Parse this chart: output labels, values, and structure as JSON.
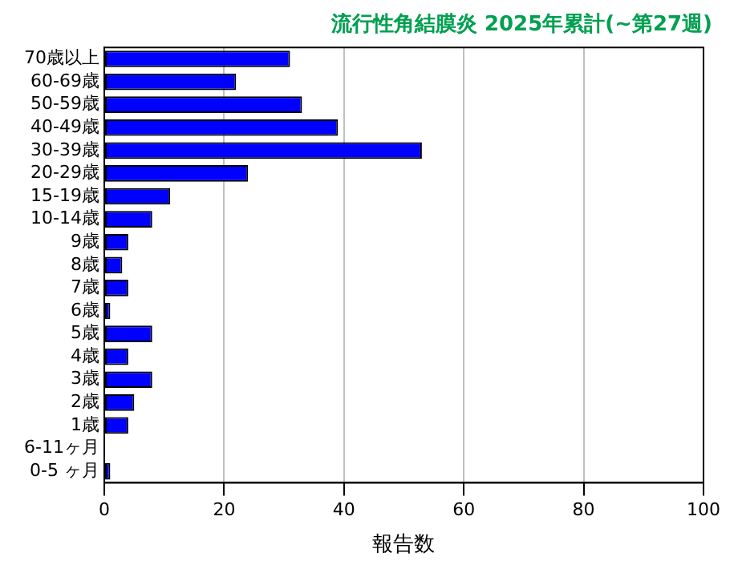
{
  "chart_data": {
    "type": "bar",
    "orientation": "horizontal",
    "title": "流行性角結膜炎 2025年累計(~第27週)",
    "xlabel": "報告数",
    "categories": [
      "70歳以上",
      "60-69歳",
      "50-59歳",
      "40-49歳",
      "30-39歳",
      "20-29歳",
      "15-19歳",
      "10-14歳",
      "9歳",
      "8歳",
      "7歳",
      "6歳",
      "5歳",
      "4歳",
      "3歳",
      "2歳",
      "1歳",
      "6-11ヶ月",
      "0-5 ヶ月"
    ],
    "values": [
      31,
      22,
      33,
      39,
      53,
      24,
      11,
      8,
      4,
      3,
      4,
      1,
      8,
      4,
      8,
      5,
      4,
      0,
      1
    ],
    "color": "#0000ff",
    "xlim": [
      0,
      100
    ],
    "xticks": [
      0,
      20,
      40,
      60,
      80,
      100
    ],
    "grid": "x",
    "legend": false
  }
}
